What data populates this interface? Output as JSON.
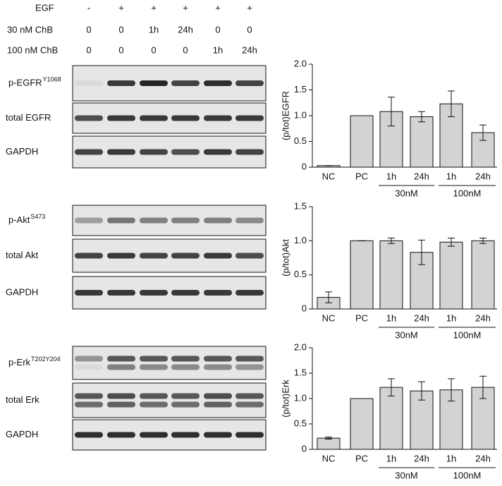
{
  "treatments": [
    {
      "label": "EGF",
      "values": [
        "-",
        "+",
        "+",
        "+",
        "+",
        "+"
      ]
    },
    {
      "label": "30 nM ChB",
      "values": [
        "0",
        "0",
        "1h",
        "24h",
        "0",
        "0"
      ]
    },
    {
      "label": "100 nM ChB",
      "values": [
        "0",
        "0",
        "0",
        "0",
        "1h",
        "24h"
      ]
    }
  ],
  "blots": [
    {
      "label": "p-EGFR",
      "sup": "Y1068"
    },
    {
      "label": "total EGFR"
    },
    {
      "label": "GAPDH"
    },
    {
      "label": "p-Akt",
      "sup": "S473"
    },
    {
      "label": "total Akt"
    },
    {
      "label": "GAPDH"
    },
    {
      "label": "p-Erk",
      "sup": "T202Y204"
    },
    {
      "label": "total Erk"
    },
    {
      "label": "GAPDH"
    }
  ],
  "chart_data": [
    {
      "type": "bar",
      "y_label": "(p/tot)EGFR",
      "categories": [
        "NC",
        "PC",
        "1h",
        "24h",
        "1h",
        "24h"
      ],
      "group_labels": [
        "30nM",
        "100nM"
      ],
      "values": [
        0.03,
        1.0,
        1.08,
        0.98,
        1.23,
        0.67
      ],
      "errors": [
        0,
        0,
        0.28,
        0.1,
        0.25,
        0.15
      ],
      "color": "#d3d3d3",
      "ylim": [
        0,
        2
      ],
      "yticks": [
        0,
        0.5,
        {
          "value": 1,
          "label": "1.0"
        },
        1.5,
        {
          "value": 2,
          "label": "2.0"
        }
      ]
    },
    {
      "type": "bar",
      "y_label": "(p/tot)Akt",
      "categories": [
        "NC",
        "PC",
        "1h",
        "24h",
        "1h",
        "24h"
      ],
      "group_labels": [
        "30nM",
        "100nM"
      ],
      "values": [
        0.17,
        1.0,
        1.0,
        0.83,
        0.98,
        1.0
      ],
      "errors": [
        0.08,
        0,
        0.04,
        0.18,
        0.06,
        0.04
      ],
      "color": "#d3d3d3",
      "ylim": [
        0,
        1.5
      ],
      "yticks": [
        0,
        0.5,
        {
          "value": 1,
          "label": "1.0"
        },
        1.5
      ]
    },
    {
      "type": "bar",
      "y_label": "(p/tot)Erk",
      "categories": [
        "NC",
        "PC",
        "1h",
        "24h",
        "1h",
        "24h"
      ],
      "group_labels": [
        "30nM",
        "100nM"
      ],
      "values": [
        0.22,
        1.0,
        1.22,
        1.15,
        1.17,
        1.22
      ],
      "errors": [
        0.02,
        0,
        0.17,
        0.18,
        0.22,
        0.22
      ],
      "color": "#d3d3d3",
      "ylim": [
        0,
        2
      ],
      "yticks": [
        0,
        0.5,
        {
          "value": 1,
          "label": "1.0"
        },
        1.5,
        {
          "value": 2,
          "label": "2.0"
        }
      ]
    }
  ]
}
